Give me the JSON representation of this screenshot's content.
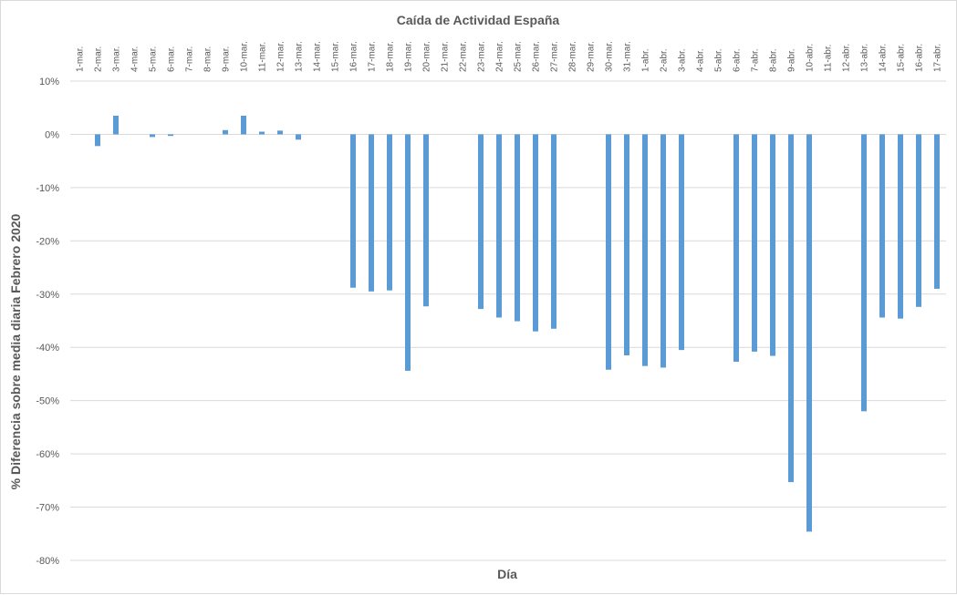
{
  "chart_data": {
    "type": "bar",
    "title": "Caída de Actividad España",
    "xlabel": "Día",
    "ylabel": "% Diferencia sobre media diaria Febrero 2020",
    "ylim": [
      -80,
      10
    ],
    "yticks": [
      10,
      0,
      -10,
      -20,
      -30,
      -40,
      -50,
      -60,
      -70,
      -80
    ],
    "ytick_labels": [
      "10%",
      "0%",
      "-10%",
      "-20%",
      "-30%",
      "-40%",
      "-50%",
      "-60%",
      "-70%",
      "-80%"
    ],
    "grid": true,
    "bar_color": "#5b9bd5",
    "categories": [
      "1-mar.",
      "2-mar.",
      "3-mar.",
      "4-mar.",
      "5-mar.",
      "6-mar.",
      "7-mar.",
      "8-mar.",
      "9-mar.",
      "10-mar.",
      "11-mar.",
      "12-mar.",
      "13-mar.",
      "14-mar.",
      "15-mar.",
      "16-mar.",
      "17-mar.",
      "18-mar.",
      "19-mar.",
      "20-mar.",
      "21-mar.",
      "22-mar.",
      "23-mar.",
      "24-mar.",
      "25-mar.",
      "26-mar.",
      "27-mar.",
      "28-mar.",
      "29-mar.",
      "30-mar.",
      "31-mar.",
      "1-abr.",
      "2-abr.",
      "3-abr.",
      "4-abr.",
      "5-abr.",
      "6-abr.",
      "7-abr.",
      "8-abr.",
      "9-abr.",
      "10-abr.",
      "11-abr.",
      "12-abr.",
      "13-abr.",
      "14-abr.",
      "15-abr.",
      "16-abr.",
      "17-abr."
    ],
    "values": [
      null,
      -2.2,
      3.5,
      null,
      -0.5,
      -0.3,
      null,
      null,
      0.8,
      3.5,
      0.5,
      0.7,
      -1.0,
      null,
      null,
      -28.8,
      -29.5,
      -29.3,
      -44.4,
      -32.3,
      null,
      null,
      -32.8,
      -34.4,
      -35.1,
      -37.0,
      -36.5,
      null,
      null,
      -44.2,
      -41.5,
      -43.5,
      -43.8,
      -40.5,
      null,
      null,
      -42.7,
      -40.8,
      -41.6,
      -65.3,
      -74.6,
      null,
      null,
      -52.0,
      -34.4,
      -34.6,
      -32.4,
      -29.0
    ]
  }
}
